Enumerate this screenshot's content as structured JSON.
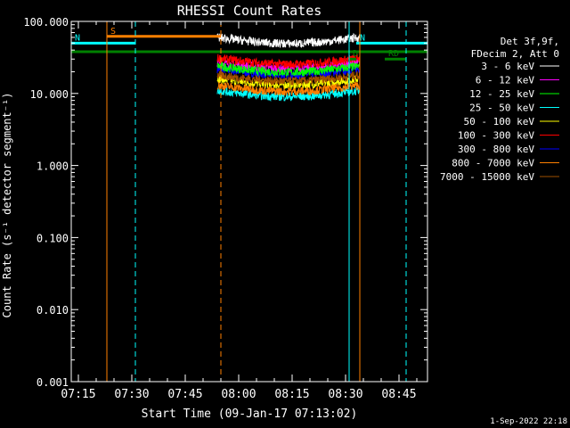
{
  "chart_data": {
    "type": "line",
    "title": "RHESSI Count Rates",
    "xlabel": "Start Time (09-Jan-17 07:13:02)",
    "ylabel": "Count Rate (s⁻¹ detector segment⁻¹)",
    "yscale": "log",
    "ylim": [
      0.001,
      100
    ],
    "xlim": [
      "07:13",
      "08:53"
    ],
    "x_ticks": [
      "07:15",
      "07:30",
      "07:45",
      "08:00",
      "08:15",
      "08:30",
      "08:45"
    ],
    "y_ticks": [
      "0.001",
      "0.010",
      "0.100",
      "1.000",
      "10.000",
      "100.000"
    ],
    "grid": false,
    "legend_header": [
      "Det 3f,9f,",
      "FDecim 2, Att 0"
    ],
    "legend_position": "right",
    "timestamp": "1-Sep-2022 22:18",
    "series": [
      {
        "name": "3 - 6 keV",
        "color": "#ffffff",
        "level": 60
      },
      {
        "name": "6 - 12 keV",
        "color": "#ff00ff",
        "level": 27
      },
      {
        "name": "12 - 25 keV",
        "color": "#00ff00",
        "level": 24
      },
      {
        "name": "25 - 50 keV",
        "color": "#00ffff",
        "level": 11
      },
      {
        "name": "50 - 100 keV",
        "color": "#ffff00",
        "level": 16
      },
      {
        "name": "100 - 300 keV",
        "color": "#ff0000",
        "level": 31
      },
      {
        "name": "300 - 800 keV",
        "color": "#0000ff",
        "level": 22
      },
      {
        "name": "800 - 7000 keV",
        "color": "#ff8000",
        "level": 13
      },
      {
        "name": "7000 - 15000 keV",
        "color": "#a05000",
        "level": 18
      }
    ],
    "data_window": {
      "start": "07:54",
      "end": "08:34"
    },
    "flags": [
      {
        "label": "S",
        "color": "#ff8000",
        "y": 62,
        "start": "07:23",
        "end": "07:55"
      },
      {
        "label": "N",
        "color": "#00ffff",
        "y": 50,
        "start": "07:13",
        "end": "07:31"
      },
      {
        "label": "N",
        "color": "#00ffff",
        "y": 50,
        "start": "08:33",
        "end": "08:53"
      },
      {
        "label": "",
        "color": "#008000",
        "y": 38,
        "start": "07:13",
        "end": "08:53"
      },
      {
        "label": "RD",
        "color": "#008000",
        "y": 30,
        "start": "08:41",
        "end": "08:47"
      },
      {
        "label": "D",
        "color": "#008000",
        "y": 30,
        "start": "08:31",
        "end": "08:33"
      }
    ],
    "vlines": [
      {
        "time": "07:13",
        "color": "#00ffff",
        "style": "solid"
      },
      {
        "time": "07:23",
        "color": "#ff8000",
        "style": "solid"
      },
      {
        "time": "07:31",
        "color": "#00ffff",
        "style": "dashed"
      },
      {
        "time": "07:55",
        "color": "#ff8000",
        "style": "dashed"
      },
      {
        "time": "08:31",
        "color": "#00ffff",
        "style": "solid"
      },
      {
        "time": "08:34",
        "color": "#ff8000",
        "style": "solid"
      },
      {
        "time": "08:47",
        "color": "#00ffff",
        "style": "dashed"
      }
    ]
  }
}
